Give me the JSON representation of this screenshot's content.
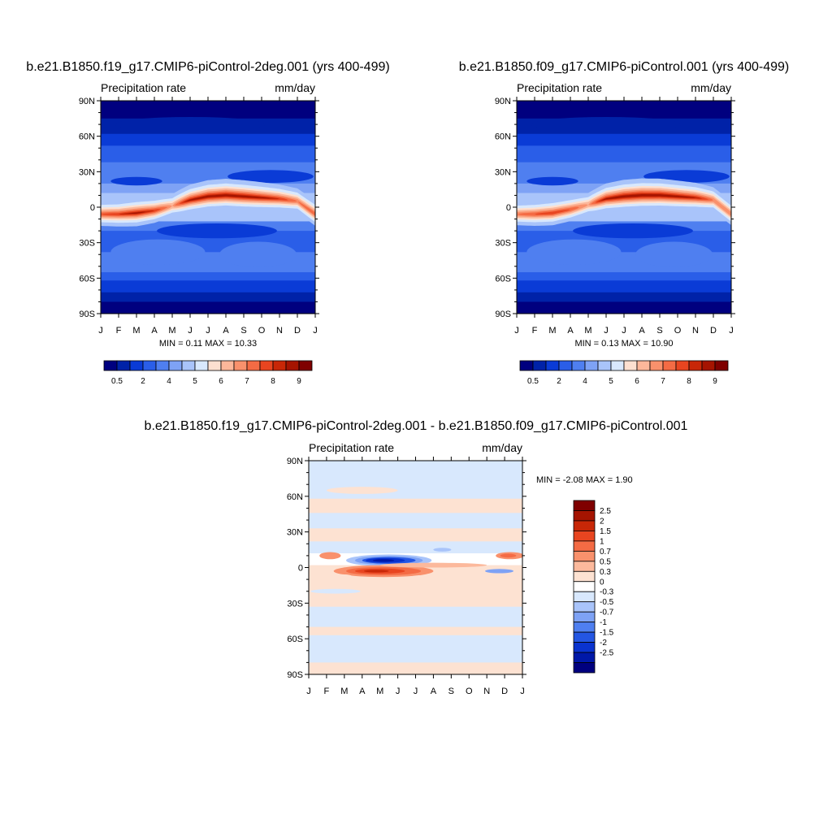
{
  "colors": {
    "seq_palette": [
      "#00007f",
      "#0022a8",
      "#0a3bd6",
      "#2a5ee8",
      "#4f7ff0",
      "#7ea2f5",
      "#a9c4fa",
      "#d8e8fd",
      "#fde0d0",
      "#fcb79a",
      "#f9916c",
      "#f46b44",
      "#e84520",
      "#c82707",
      "#a51401",
      "#7f0000"
    ],
    "diff_palette": [
      "#00007f",
      "#0018a8",
      "#0a33cf",
      "#2456e3",
      "#4f7ff0",
      "#7ea2f5",
      "#a9c4fa",
      "#d8e8fd",
      "#ffffff",
      "#fde2d2",
      "#fcb99c",
      "#f9916c",
      "#f46b44",
      "#e84520",
      "#c82707",
      "#a51401",
      "#7f0000"
    ],
    "frame": "#000000"
  },
  "panels": [
    {
      "id": "A",
      "title": "b.e21.B1850.f19_g17.CMIP6-piControl-2deg.001 (yrs 400-499)",
      "left_label": "Precipitation rate",
      "right_label": "mm/day",
      "stats": "MIN =   0.11 MAX =  10.33",
      "y_ticks": [
        "90N",
        "60N",
        "30N",
        "0",
        "30S",
        "60S",
        "90S"
      ],
      "x_ticks": [
        "J",
        "F",
        "M",
        "A",
        "M",
        "J",
        "J",
        "A",
        "S",
        "O",
        "N",
        "D",
        "J"
      ]
    },
    {
      "id": "B",
      "title": "b.e21.B1850.f09_g17.CMIP6-piControl.001 (yrs 400-499)",
      "left_label": "Precipitation rate",
      "right_label": "mm/day",
      "stats": "MIN =   0.13 MAX =  10.90",
      "y_ticks": [
        "90N",
        "60N",
        "30N",
        "0",
        "30S",
        "60S",
        "90S"
      ],
      "x_ticks": [
        "J",
        "F",
        "M",
        "A",
        "M",
        "J",
        "J",
        "A",
        "S",
        "O",
        "N",
        "D",
        "J"
      ]
    },
    {
      "id": "C",
      "title": "b.e21.B1850.f19_g17.CMIP6-piControl-2deg.001 - b.e21.B1850.f09_g17.CMIP6-piControl.001",
      "left_label": "Precipitation rate",
      "right_label": "mm/day",
      "stats": "MIN =  -2.08 MAX =   1.90",
      "y_ticks": [
        "90N",
        "60N",
        "30N",
        "0",
        "30S",
        "60S",
        "90S"
      ],
      "x_ticks": [
        "J",
        "F",
        "M",
        "A",
        "M",
        "J",
        "J",
        "A",
        "S",
        "O",
        "N",
        "D",
        "J"
      ]
    }
  ],
  "colorbar_seq": {
    "labels": [
      "0.5",
      "2",
      "4",
      "5",
      "6",
      "7",
      "8",
      "9"
    ]
  },
  "colorbar_diff": {
    "labels": [
      "2.5",
      "2",
      "1.5",
      "1",
      "0.7",
      "0.5",
      "0.3",
      "0",
      "-0.3",
      "-0.5",
      "-0.7",
      "-1",
      "-1.5",
      "-2",
      "-2.5"
    ]
  },
  "chart_data": [
    {
      "type": "heatmap",
      "title": "b.e21.B1850.f19_g17.CMIP6-piControl-2deg.001 (yrs 400-499)",
      "xlabel": "",
      "ylabel": "",
      "x": [
        "J",
        "F",
        "M",
        "A",
        "M",
        "J",
        "J",
        "A",
        "S",
        "O",
        "N",
        "D",
        "J"
      ],
      "ylim": [
        -90,
        90
      ],
      "min": 0.11,
      "max": 10.33,
      "levels": [
        0.5,
        2,
        4,
        5,
        6,
        7,
        8,
        9
      ],
      "itcz": {
        "lat": [
          -6,
          -6,
          -5,
          -3,
          1,
          6,
          9,
          10,
          9,
          8,
          7,
          5,
          -6
        ],
        "peak_mm_day": [
          7.5,
          8,
          9,
          8,
          6.5,
          9,
          10,
          10.3,
          10,
          9,
          8,
          7,
          7.5
        ]
      }
    },
    {
      "type": "heatmap",
      "title": "b.e21.B1850.f09_g17.CMIP6-piControl.001 (yrs 400-499)",
      "xlabel": "",
      "ylabel": "",
      "x": [
        "J",
        "F",
        "M",
        "A",
        "M",
        "J",
        "J",
        "A",
        "S",
        "O",
        "N",
        "D",
        "J"
      ],
      "ylim": [
        -90,
        90
      ],
      "min": 0.13,
      "max": 10.9,
      "levels": [
        0.5,
        2,
        4,
        5,
        6,
        7,
        8,
        9
      ],
      "itcz": {
        "lat": [
          -6,
          -6,
          -5,
          -2,
          2,
          7,
          9,
          10,
          10,
          9,
          8,
          6,
          -6
        ],
        "peak_mm_day": [
          7,
          7.5,
          8,
          7.5,
          6.5,
          9,
          10.5,
          10.9,
          10.5,
          9.5,
          8.5,
          7,
          7
        ]
      }
    },
    {
      "type": "heatmap",
      "title": "b.e21.B1850.f19_g17.CMIP6-piControl-2deg.001 - b.e21.B1850.f09_g17.CMIP6-piControl.001",
      "xlabel": "",
      "ylabel": "",
      "x": [
        "J",
        "F",
        "M",
        "A",
        "M",
        "J",
        "J",
        "A",
        "S",
        "O",
        "N",
        "D",
        "J"
      ],
      "ylim": [
        -90,
        90
      ],
      "min": -2.08,
      "max": 1.9,
      "levels": [
        -2.5,
        -2,
        -1.5,
        -1,
        -0.7,
        -0.5,
        -0.3,
        0,
        0.3,
        0.5,
        0.7,
        1,
        1.5,
        2,
        2.5
      ]
    }
  ]
}
